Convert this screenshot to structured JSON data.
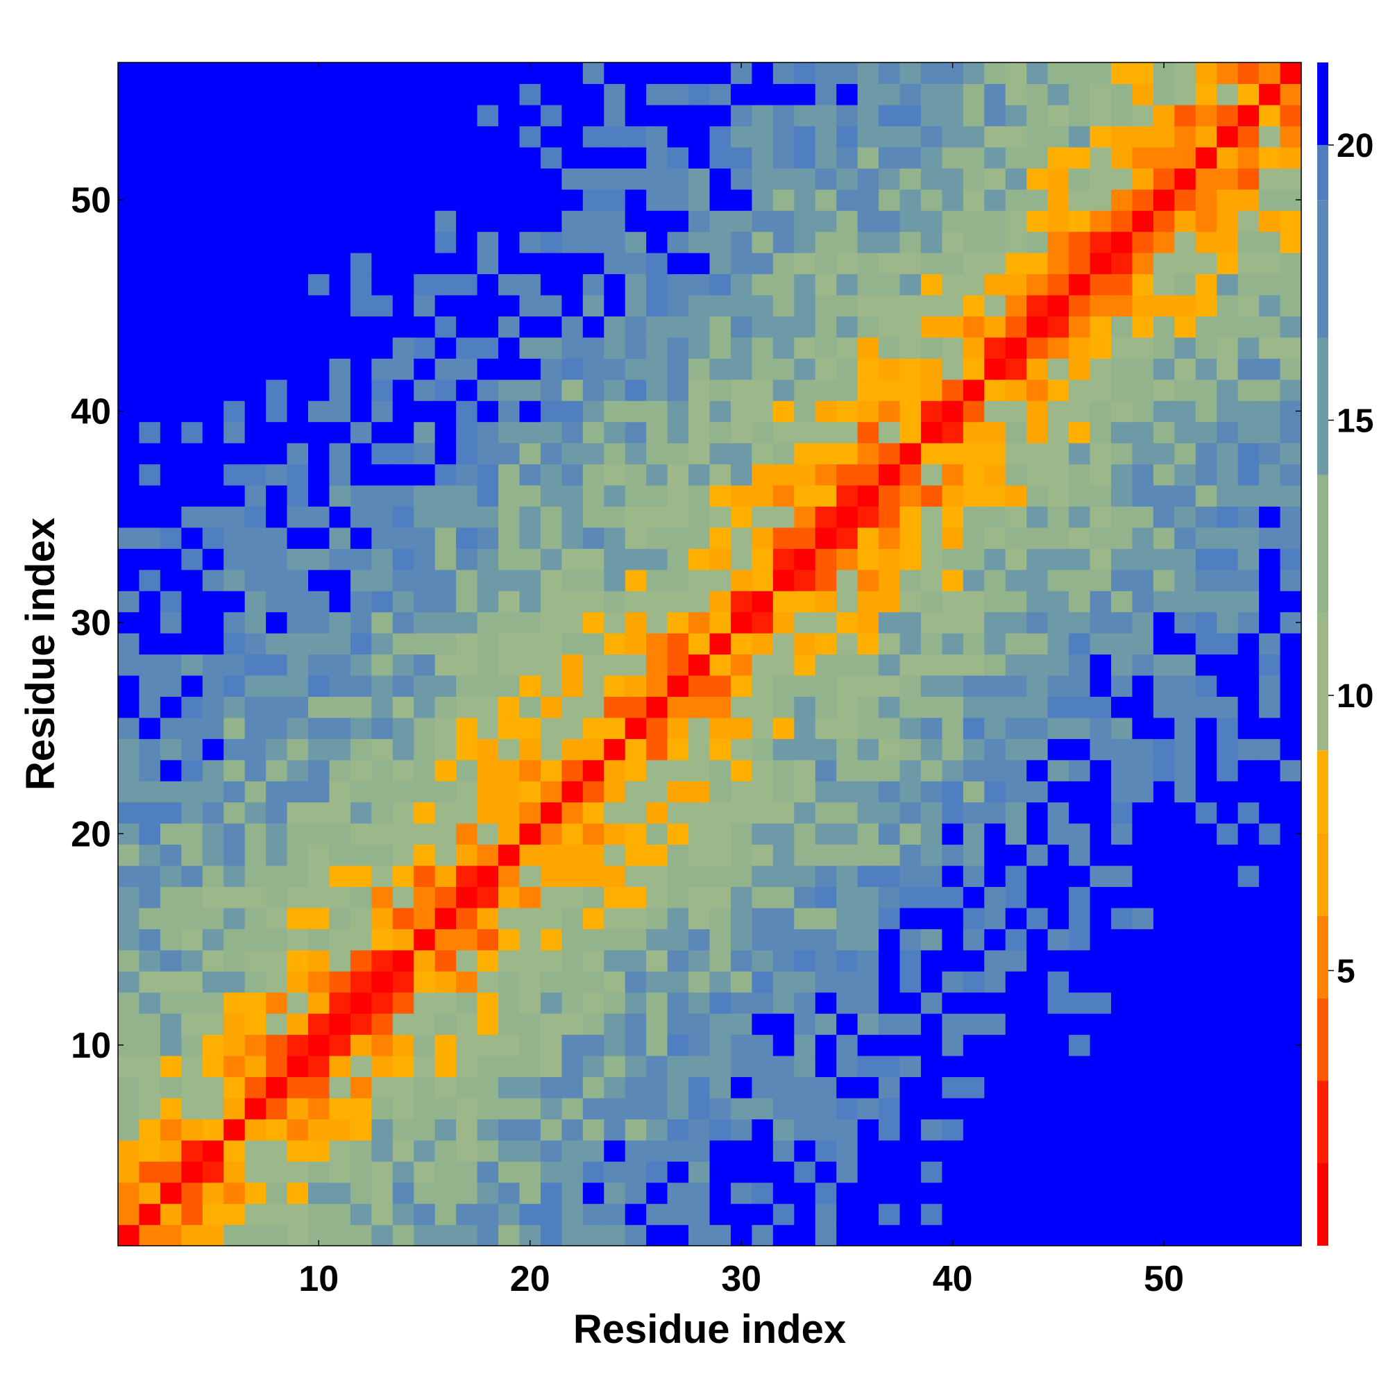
{
  "chart_data": {
    "type": "heatmap",
    "title": "",
    "xlabel": "Residue index",
    "ylabel": "Residue index",
    "n": 56,
    "x_ticks": [
      10,
      20,
      30,
      40,
      50
    ],
    "y_ticks": [
      10,
      20,
      30,
      40,
      50
    ],
    "colorbar_ticks": [
      5,
      10,
      15,
      20
    ],
    "value_range": [
      0,
      21.5
    ],
    "description_of_values": "symmetric residue-residue distance map; values grow with |i-j|, saturating near 21",
    "colormap": [
      {
        "max": 1.5,
        "color": "#ff0000"
      },
      {
        "max": 3.0,
        "color": "#ff1e00"
      },
      {
        "max": 4.5,
        "color": "#ff5a00"
      },
      {
        "max": 6.0,
        "color": "#ff8200"
      },
      {
        "max": 7.5,
        "color": "#ffa500"
      },
      {
        "max": 9.0,
        "color": "#ffaf00"
      },
      {
        "max": 11.5,
        "color": "#9cb88a"
      },
      {
        "max": 14.0,
        "color": "#93b38d"
      },
      {
        "max": 16.5,
        "color": "#6e9aa8"
      },
      {
        "max": 19.0,
        "color": "#5b88b7"
      },
      {
        "max": 20.0,
        "color": "#4f7fc0"
      },
      {
        "max": 99,
        "color": "#0000ff"
      }
    ],
    "colorbar_bands": [
      {
        "from": 0,
        "to": 1.5,
        "color": "#ff0000"
      },
      {
        "from": 1.5,
        "to": 3.0,
        "color": "#ff1e00"
      },
      {
        "from": 3.0,
        "to": 4.5,
        "color": "#ff5a00"
      },
      {
        "from": 4.5,
        "to": 6.0,
        "color": "#ff8200"
      },
      {
        "from": 6.0,
        "to": 7.5,
        "color": "#ffa500"
      },
      {
        "from": 7.5,
        "to": 9.0,
        "color": "#ffaf00"
      },
      {
        "from": 9.0,
        "to": 11.5,
        "color": "#9cb88a"
      },
      {
        "from": 11.5,
        "to": 14.0,
        "color": "#93b38d"
      },
      {
        "from": 14.0,
        "to": 16.5,
        "color": "#6e9aa8"
      },
      {
        "from": 16.5,
        "to": 19.0,
        "color": "#5b88b7"
      },
      {
        "from": 19.0,
        "to": 20.0,
        "color": "#4f7fc0"
      },
      {
        "from": 20.0,
        "to": 21.5,
        "color": "#0000ff"
      }
    ]
  }
}
